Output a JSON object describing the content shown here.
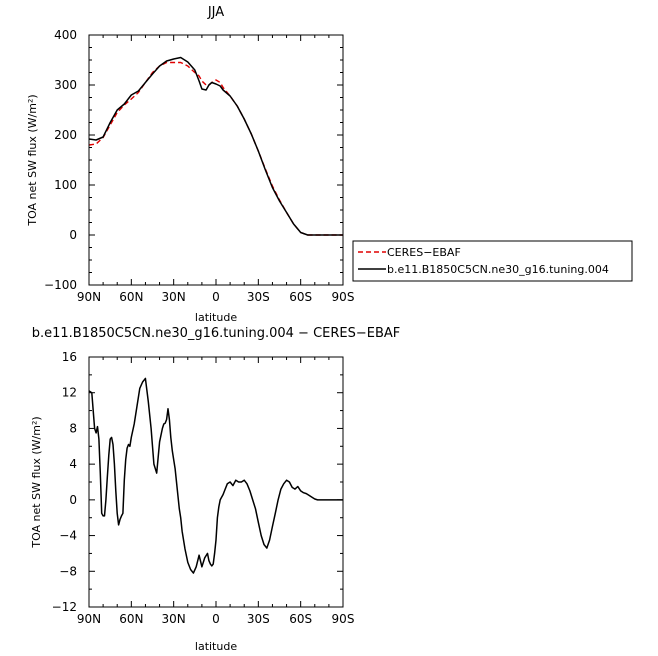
{
  "chart_data": [
    {
      "type": "line",
      "title": "JJA",
      "xlabel": "latitude",
      "ylabel": "TOA net SW flux (W/m²)",
      "xlim": [
        90,
        -90
      ],
      "ylim": [
        -100,
        400
      ],
      "x_tick_values": [
        90,
        60,
        30,
        0,
        -30,
        -60,
        -90
      ],
      "x_tick_labels": [
        "90N",
        "60N",
        "30N",
        "0",
        "30S",
        "60S",
        "90S"
      ],
      "y_tick_values": [
        -100,
        0,
        100,
        200,
        300,
        400
      ],
      "y_tick_labels": [
        "−100",
        "0",
        "100",
        "200",
        "300",
        "400"
      ],
      "legend_position": "right of plot, lower",
      "grid": false,
      "series": [
        {
          "name": "CERES−EBAF",
          "color": "#e00000",
          "style": "dashed",
          "x": [
            90,
            85,
            80,
            75,
            70,
            65,
            60,
            55,
            50,
            45,
            40,
            35,
            30,
            25,
            20,
            15,
            12,
            10,
            7,
            5,
            3,
            0,
            -3,
            -5,
            -10,
            -15,
            -20,
            -25,
            -30,
            -35,
            -40,
            -45,
            -50,
            -55,
            -60,
            -65,
            -70,
            -75,
            -80,
            -85,
            -90
          ],
          "y": [
            180,
            182,
            195,
            220,
            245,
            260,
            272,
            285,
            305,
            325,
            338,
            345,
            345,
            345,
            338,
            325,
            318,
            308,
            300,
            300,
            305,
            310,
            305,
            295,
            278,
            258,
            232,
            202,
            168,
            132,
            98,
            70,
            45,
            22,
            5,
            0,
            0,
            0,
            0,
            0,
            0
          ]
        },
        {
          "name": "b.e11.B1850C5CN.ne30_g16.tuning.004",
          "color": "#000000",
          "style": "solid",
          "x": [
            90,
            85,
            80,
            75,
            70,
            65,
            60,
            55,
            50,
            45,
            40,
            35,
            30,
            25,
            20,
            15,
            12,
            10,
            7,
            5,
            3,
            0,
            -3,
            -5,
            -10,
            -15,
            -20,
            -25,
            -30,
            -35,
            -40,
            -45,
            -50,
            -55,
            -60,
            -65,
            -70,
            -75,
            -80,
            -85,
            -90
          ],
          "y": [
            192,
            190,
            196,
            225,
            250,
            262,
            280,
            288,
            305,
            322,
            338,
            348,
            352,
            355,
            346,
            330,
            308,
            292,
            290,
            300,
            305,
            302,
            298,
            290,
            278,
            258,
            232,
            202,
            168,
            130,
            95,
            68,
            45,
            22,
            5,
            0,
            0,
            0,
            0,
            0,
            0
          ]
        }
      ]
    },
    {
      "type": "line",
      "title": "b.e11.B1850C5CN.ne30_g16.tuning.004 − CERES−EBAF",
      "xlabel": "latitude",
      "ylabel": "TOA net SW flux (W/m²)",
      "xlim": [
        90,
        -90
      ],
      "ylim": [
        -12,
        16
      ],
      "x_tick_values": [
        90,
        60,
        30,
        0,
        -30,
        -60,
        -90
      ],
      "x_tick_labels": [
        "90N",
        "60N",
        "30N",
        "0",
        "30S",
        "60S",
        "90S"
      ],
      "y_tick_values": [
        -12,
        -8,
        -4,
        0,
        4,
        8,
        12,
        16
      ],
      "y_tick_labels": [
        "−12",
        "−8",
        "−4",
        "0",
        "4",
        "8",
        "12",
        "16"
      ],
      "grid": false,
      "series": [
        {
          "name": "",
          "color": "#000000",
          "style": "solid",
          "x": [
            90,
            88,
            86,
            85,
            84,
            83,
            82,
            81,
            80,
            79,
            78,
            77,
            76,
            75,
            74,
            73,
            72,
            71,
            70,
            69,
            68,
            67,
            66,
            65,
            64,
            63,
            62,
            61,
            60,
            58,
            56,
            54,
            52,
            50,
            48,
            46,
            45,
            44,
            42,
            40,
            38,
            37,
            36,
            35,
            34,
            33,
            32,
            31,
            30,
            29,
            28,
            27,
            26,
            25,
            24,
            22,
            20,
            18,
            16,
            14,
            12,
            10,
            8,
            6,
            5,
            4,
            3,
            2,
            1,
            0,
            -1,
            -2,
            -3,
            -4,
            -5,
            -6,
            -8,
            -10,
            -12,
            -14,
            -16,
            -18,
            -20,
            -22,
            -24,
            -26,
            -28,
            -30,
            -32,
            -34,
            -36,
            -38,
            -40,
            -42,
            -44,
            -46,
            -48,
            -50,
            -52,
            -54,
            -56,
            -58,
            -60,
            -62,
            -64,
            -66,
            -68,
            -70,
            -72,
            -74,
            -76,
            -78,
            -80,
            -85,
            -90
          ],
          "y": [
            12.2,
            12.0,
            8.0,
            7.5,
            8.2,
            6.8,
            3.0,
            -1.5,
            -1.8,
            -1.8,
            0.0,
            2.5,
            5.0,
            6.8,
            7.0,
            6.2,
            4.0,
            1.0,
            -1.5,
            -2.8,
            -2.2,
            -1.8,
            -1.5,
            2.2,
            4.5,
            5.8,
            6.2,
            6.0,
            7.0,
            8.5,
            10.5,
            12.5,
            13.2,
            13.6,
            11.0,
            8.0,
            6.0,
            4.0,
            3.0,
            6.5,
            8.0,
            8.5,
            8.6,
            9.0,
            10.2,
            9.0,
            7.0,
            5.5,
            4.5,
            3.5,
            2.0,
            0.5,
            -1.0,
            -2.0,
            -3.5,
            -5.5,
            -7.0,
            -7.8,
            -8.2,
            -7.5,
            -6.2,
            -7.5,
            -6.5,
            -6.0,
            -6.8,
            -7.2,
            -7.4,
            -7.2,
            -6.0,
            -4.5,
            -2.0,
            -0.8,
            0.0,
            0.3,
            0.6,
            1.0,
            1.8,
            2.0,
            1.6,
            2.2,
            2.0,
            2.0,
            2.2,
            1.8,
            1.0,
            0.0,
            -1.0,
            -2.5,
            -4.0,
            -5.0,
            -5.4,
            -4.5,
            -3.0,
            -1.5,
            0.0,
            1.2,
            1.8,
            2.2,
            2.0,
            1.4,
            1.2,
            1.5,
            1.0,
            0.8,
            0.7,
            0.5,
            0.3,
            0.1,
            0.0,
            0.0,
            0.0,
            0.0,
            0.0,
            0.0,
            0.0
          ]
        }
      ]
    }
  ]
}
